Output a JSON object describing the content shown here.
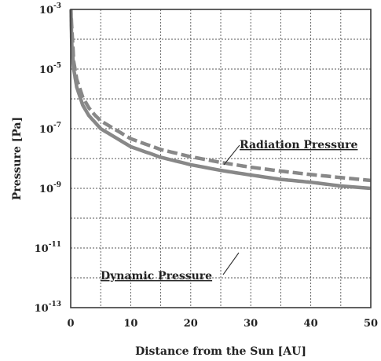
{
  "chart_data": {
    "type": "line",
    "xlabel": "Distance from the Sun [AU]",
    "ylabel": "Pressure [Pa]",
    "xlim": [
      0,
      50
    ],
    "ylim": [
      1e-13,
      0.001
    ],
    "yscale": "log",
    "grid": true,
    "x_ticks": [
      0,
      10,
      20,
      30,
      40,
      50
    ],
    "x_tick_labels": [
      "0",
      "10",
      "20",
      "30",
      "40",
      "50"
    ],
    "y_ticks": [
      0.001,
      1e-05,
      1e-07,
      1e-09,
      1e-11,
      1e-13
    ],
    "y_tick_labels": [
      {
        "base": "10",
        "exp": "-3"
      },
      {
        "base": "10",
        "exp": "-5"
      },
      {
        "base": "10",
        "exp": "-7"
      },
      {
        "base": "10",
        "exp": "-9"
      },
      {
        "base": "10",
        "exp": "-11"
      },
      {
        "base": "10",
        "exp": "-13"
      }
    ],
    "series": [
      {
        "name": "Radiation Pressure",
        "style": "dashed",
        "color": "#888888",
        "x": [
          0.1,
          0.5,
          1,
          2,
          3,
          4,
          5,
          10,
          15,
          20,
          25,
          30,
          35,
          40,
          45,
          50
        ],
        "y": [
          0.0005,
          1.8e-05,
          4.6e-06,
          1.15e-06,
          5.1e-07,
          2.9e-07,
          1.84e-07,
          4.6e-08,
          2e-08,
          1.15e-08,
          7.4e-09,
          5.1e-09,
          3.8e-09,
          2.9e-09,
          2.3e-09,
          1.84e-09
        ]
      },
      {
        "name": "Dynamic Pressure",
        "style": "solid",
        "color": "#888888",
        "x": [
          0.05,
          0.1,
          0.2,
          0.5,
          1,
          2,
          3,
          5,
          10,
          15,
          20,
          25,
          30,
          35,
          40,
          45,
          50
        ],
        "y": [
          0.001,
          0.00025,
          6.2e-05,
          1e-05,
          2.5e-06,
          6.2e-07,
          2.8e-07,
          1e-07,
          2.5e-08,
          1.1e-08,
          6.2e-09,
          4e-09,
          2.8e-09,
          2e-09,
          1.6e-09,
          1.2e-09,
          1e-09
        ]
      }
    ],
    "annotations": [
      {
        "text": "Radiation Pressure",
        "points_to": "Radiation Pressure"
      },
      {
        "text": "Dynamic Pressure",
        "points_to": "Dynamic Pressure"
      }
    ]
  }
}
